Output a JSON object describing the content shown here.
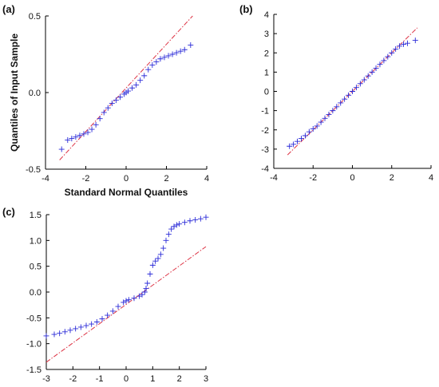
{
  "chart_data": [
    {
      "type": "scatter",
      "panel_label": "(a)",
      "xlabel": "Standard Normal Quantiles",
      "ylabel": "Quantiles of Input Sample",
      "xlim": [
        -4,
        4
      ],
      "ylim": [
        -0.5,
        0.5
      ],
      "xticks": [
        -4,
        -2,
        0,
        2,
        4
      ],
      "yticks": [
        -0.5,
        0.0,
        0.5
      ],
      "ytick_labels": [
        "-0.5",
        "0.0",
        "0.5"
      ],
      "grid": false,
      "marker": "plus",
      "marker_color": "#2a2ad8",
      "reference_line": {
        "color": "#dd3344",
        "style": "dash-dot",
        "x": [
          -3.3,
          3.3
        ],
        "y": [
          -0.44,
          0.5
        ]
      },
      "series": [
        {
          "x": [
            -3.2,
            -2.9,
            -2.7,
            -2.5,
            -2.3,
            -2.1,
            -1.9,
            -1.7,
            -1.5,
            -1.3,
            -1.1,
            -0.9,
            -0.7,
            -0.5,
            -0.3,
            -0.1,
            0.0,
            0.1,
            0.3,
            0.5,
            0.7,
            0.9,
            1.1,
            1.3,
            1.5,
            1.7,
            1.9,
            2.1,
            2.3,
            2.5,
            2.7,
            2.9,
            3.2
          ],
          "y": [
            -0.37,
            -0.31,
            -0.3,
            -0.29,
            -0.28,
            -0.27,
            -0.26,
            -0.24,
            -0.21,
            -0.17,
            -0.13,
            -0.1,
            -0.07,
            -0.05,
            -0.03,
            -0.01,
            0.0,
            0.01,
            0.03,
            0.05,
            0.08,
            0.11,
            0.15,
            0.18,
            0.2,
            0.22,
            0.23,
            0.24,
            0.25,
            0.26,
            0.27,
            0.28,
            0.31
          ]
        }
      ]
    },
    {
      "type": "scatter",
      "panel_label": "(b)",
      "xlabel": "",
      "ylabel": "",
      "xlim": [
        -4,
        4
      ],
      "ylim": [
        -4,
        4
      ],
      "xticks": [
        -4,
        -2,
        0,
        2,
        4
      ],
      "yticks": [
        -4,
        -3,
        -2,
        -1,
        0,
        1,
        2,
        3,
        4
      ],
      "ytick_labels": [
        "-4",
        "-3",
        "-2",
        "-1",
        "0",
        "1",
        "2",
        "3",
        "4"
      ],
      "grid": false,
      "marker": "plus",
      "marker_color": "#2a2ad8",
      "reference_line": {
        "color": "#dd3344",
        "style": "dash-dot",
        "x": [
          -3.3,
          3.3
        ],
        "y": [
          -3.3,
          3.3
        ]
      },
      "series": [
        {
          "x": [
            -3.2,
            -3.0,
            -2.8,
            -2.6,
            -2.4,
            -2.2,
            -2.0,
            -1.8,
            -1.6,
            -1.4,
            -1.2,
            -1.0,
            -0.8,
            -0.6,
            -0.4,
            -0.2,
            0.0,
            0.2,
            0.4,
            0.6,
            0.8,
            1.0,
            1.2,
            1.4,
            1.6,
            1.8,
            2.0,
            2.2,
            2.4,
            2.6,
            2.8,
            3.2
          ],
          "y": [
            -2.85,
            -2.75,
            -2.6,
            -2.45,
            -2.3,
            -2.1,
            -1.95,
            -1.8,
            -1.6,
            -1.4,
            -1.2,
            -1.0,
            -0.8,
            -0.6,
            -0.4,
            -0.2,
            0.0,
            0.2,
            0.4,
            0.6,
            0.8,
            1.0,
            1.2,
            1.4,
            1.6,
            1.8,
            2.0,
            2.2,
            2.35,
            2.45,
            2.5,
            2.65
          ]
        }
      ]
    },
    {
      "type": "scatter",
      "panel_label": "(c)",
      "xlabel": "",
      "ylabel": "",
      "xlim": [
        -3,
        3
      ],
      "ylim": [
        -1.5,
        1.5
      ],
      "xticks": [
        -3,
        -2,
        -1,
        0,
        1,
        2,
        3
      ],
      "yticks": [
        -1.5,
        -1.0,
        -0.5,
        0.0,
        0.5,
        1.0,
        1.5
      ],
      "ytick_labels": [
        "-1.5",
        "-1.0",
        "-0.5",
        "0.0",
        "0.5",
        "1.0",
        "1.5"
      ],
      "grid": false,
      "marker": "plus",
      "marker_color": "#2a2ad8",
      "reference_line": {
        "color": "#dd3344",
        "style": "dash-dot",
        "x": [
          -3,
          3
        ],
        "y": [
          -1.36,
          0.88
        ]
      },
      "series": [
        {
          "x": [
            -3.0,
            -2.7,
            -2.5,
            -2.3,
            -2.1,
            -1.9,
            -1.7,
            -1.5,
            -1.3,
            -1.1,
            -0.9,
            -0.7,
            -0.5,
            -0.3,
            -0.1,
            0.0,
            0.1,
            0.3,
            0.5,
            0.6,
            0.7,
            0.75,
            0.8,
            0.9,
            1.0,
            1.1,
            1.2,
            1.3,
            1.4,
            1.5,
            1.6,
            1.7,
            1.8,
            1.9,
            2.0,
            2.2,
            2.4,
            2.6,
            2.8,
            3.0
          ],
          "y": [
            -0.85,
            -0.82,
            -0.8,
            -0.77,
            -0.74,
            -0.71,
            -0.68,
            -0.65,
            -0.62,
            -0.58,
            -0.52,
            -0.45,
            -0.37,
            -0.28,
            -0.2,
            -0.17,
            -0.15,
            -0.12,
            -0.08,
            -0.05,
            0.0,
            0.07,
            0.17,
            0.35,
            0.52,
            0.6,
            0.65,
            0.73,
            0.85,
            1.0,
            1.12,
            1.22,
            1.27,
            1.3,
            1.32,
            1.35,
            1.38,
            1.4,
            1.42,
            1.45
          ]
        }
      ]
    }
  ]
}
